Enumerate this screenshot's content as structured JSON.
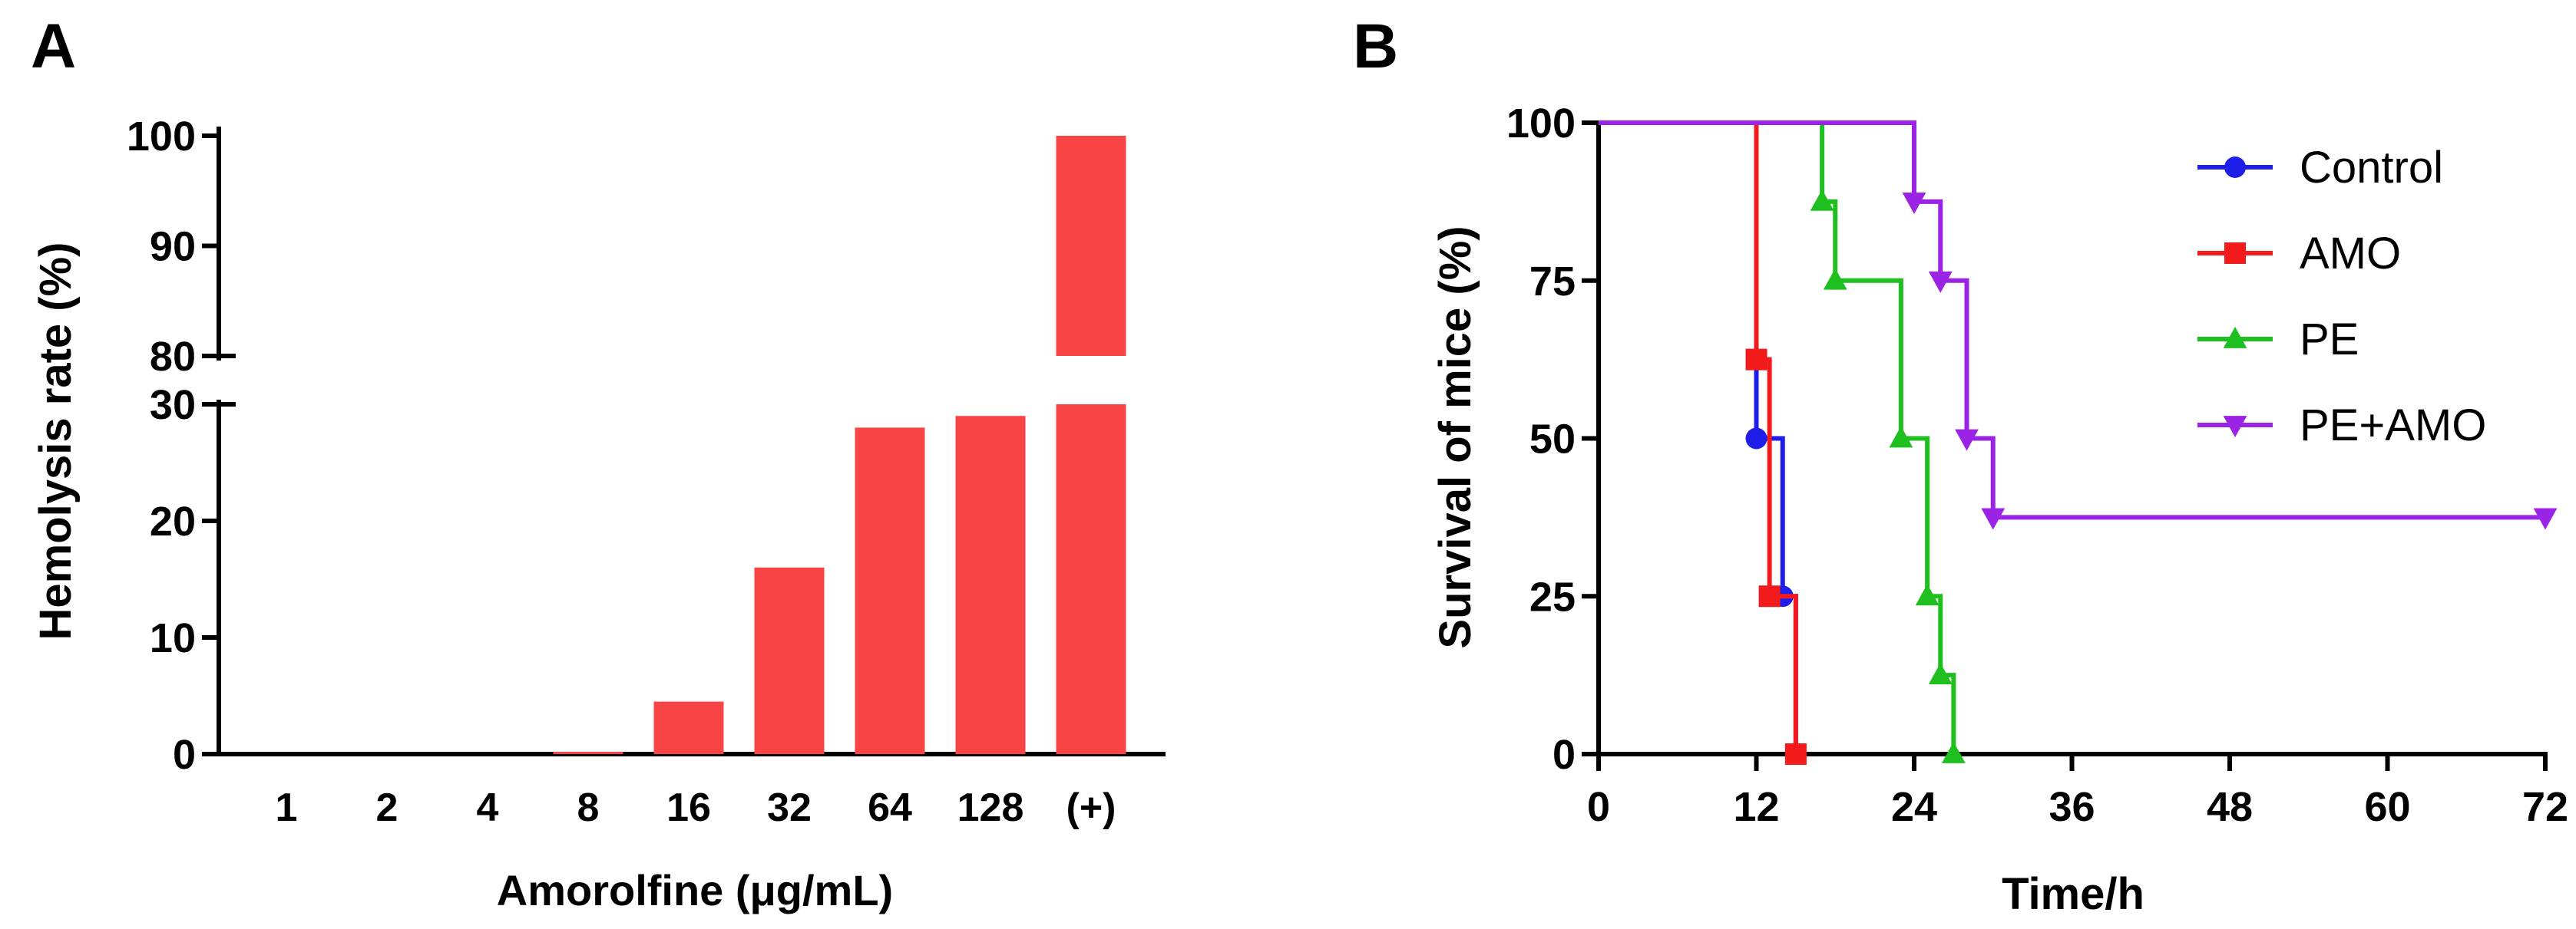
{
  "chart_data": [
    {
      "panel_label": "A",
      "type": "bar",
      "xlabel": "Amorolfine (μg/mL)",
      "ylabel": "Hemolysis rate (%)",
      "categories": [
        "1",
        "2",
        "4",
        "8",
        "16",
        "32",
        "64",
        "128",
        "(+)"
      ],
      "values": [
        0,
        0,
        0,
        0.2,
        4.5,
        16,
        28,
        29,
        100
      ],
      "axis_break": {
        "lower_range": [
          0,
          30
        ],
        "upper_range": [
          80,
          100
        ]
      },
      "y_ticks_lower": [
        0,
        10,
        20,
        30
      ],
      "y_ticks_upper": [
        80,
        90,
        100
      ],
      "bar_color": "#f84445"
    },
    {
      "panel_label": "B",
      "type": "line",
      "subtype": "step (Kaplan-Meier survival)",
      "xlabel": "Time/h",
      "ylabel": "Survival of mice (%)",
      "xlim": [
        0,
        72
      ],
      "ylim": [
        0,
        100
      ],
      "x_ticks": [
        0,
        12,
        24,
        36,
        48,
        60,
        72
      ],
      "y_ticks": [
        0,
        25,
        50,
        75,
        100
      ],
      "legend_position": "top-right",
      "series": [
        {
          "name": "Control",
          "color": "#1e1ee8",
          "marker": "circle",
          "steps": [
            [
              0,
              100
            ],
            [
              12,
              50
            ],
            [
              14,
              25
            ],
            [
              15,
              0
            ]
          ],
          "marker_points": [
            [
              12,
              50
            ],
            [
              14,
              25
            ],
            [
              15,
              0
            ]
          ]
        },
        {
          "name": "AMO",
          "color": "#f21a1a",
          "marker": "square",
          "steps": [
            [
              0,
              100
            ],
            [
              12,
              62.5
            ],
            [
              13,
              25
            ],
            [
              15,
              0
            ]
          ],
          "marker_points": [
            [
              12,
              62.5
            ],
            [
              13,
              25
            ],
            [
              15,
              0
            ]
          ]
        },
        {
          "name": "PE",
          "color": "#1fbf1f",
          "marker": "triangle-up",
          "steps": [
            [
              0,
              100
            ],
            [
              17,
              87.5
            ],
            [
              18,
              75
            ],
            [
              23,
              50
            ],
            [
              25,
              25
            ],
            [
              26,
              12.5
            ],
            [
              27,
              0
            ]
          ],
          "marker_points": [
            [
              17,
              87.5
            ],
            [
              18,
              75
            ],
            [
              23,
              50
            ],
            [
              25,
              25
            ],
            [
              26,
              12.5
            ],
            [
              27,
              0
            ]
          ]
        },
        {
          "name": "PE+AMO",
          "color": "#9b23e6",
          "marker": "triangle-down",
          "steps": [
            [
              0,
              100
            ],
            [
              24,
              87.5
            ],
            [
              26,
              75
            ],
            [
              28,
              50
            ],
            [
              30,
              37.5
            ],
            [
              72,
              37.5
            ]
          ],
          "marker_points": [
            [
              24,
              87.5
            ],
            [
              26,
              75
            ],
            [
              28,
              50
            ],
            [
              30,
              37.5
            ],
            [
              72,
              37.5
            ]
          ]
        }
      ]
    }
  ]
}
